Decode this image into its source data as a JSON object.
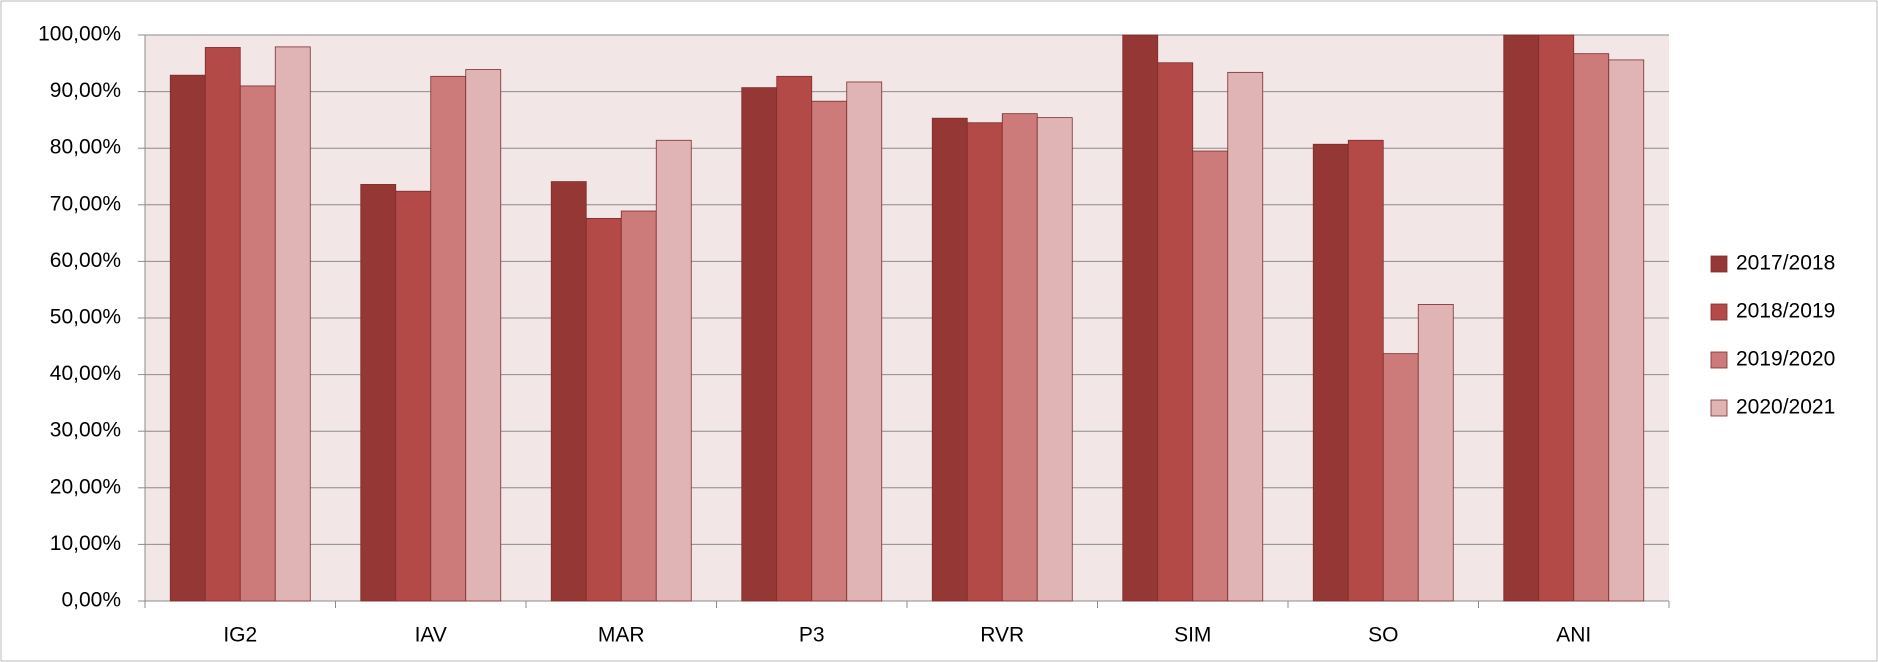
{
  "chart_data": {
    "type": "bar",
    "categories": [
      "IG2",
      "IAV",
      "MAR",
      "P3",
      "RVR",
      "SIM",
      "SO",
      "ANI"
    ],
    "series": [
      {
        "name": "2017/2018",
        "color": "#953735",
        "values": [
          92.9,
          73.6,
          74.1,
          90.7,
          85.3,
          100,
          80.7,
          100
        ]
      },
      {
        "name": "2018/2019",
        "color": "#b44a47",
        "values": [
          97.8,
          72.4,
          67.6,
          92.7,
          84.5,
          95.1,
          81.4,
          100
        ]
      },
      {
        "name": "2019/2020",
        "color": "#cc7b7a",
        "values": [
          91.0,
          92.7,
          68.9,
          88.3,
          86.1,
          79.5,
          43.7,
          96.7
        ]
      },
      {
        "name": "2020/2021",
        "color": "#e0b4b5",
        "values": [
          97.9,
          93.9,
          81.4,
          91.7,
          85.4,
          93.4,
          52.4,
          95.6
        ]
      }
    ],
    "ylim": [
      0,
      100
    ],
    "yticks": [
      {
        "value": 0,
        "label": "0,00%"
      },
      {
        "value": 10,
        "label": "10,00%"
      },
      {
        "value": 20,
        "label": "20,00%"
      },
      {
        "value": 30,
        "label": "30,00%"
      },
      {
        "value": 40,
        "label": "40,00%"
      },
      {
        "value": 50,
        "label": "50,00%"
      },
      {
        "value": 60,
        "label": "60,00%"
      },
      {
        "value": 70,
        "label": "70,00%"
      },
      {
        "value": 80,
        "label": "80,00%"
      },
      {
        "value": 90,
        "label": "90,00%"
      },
      {
        "value": 100,
        "label": "100,00%"
      }
    ],
    "grid": true,
    "legend": "right"
  }
}
